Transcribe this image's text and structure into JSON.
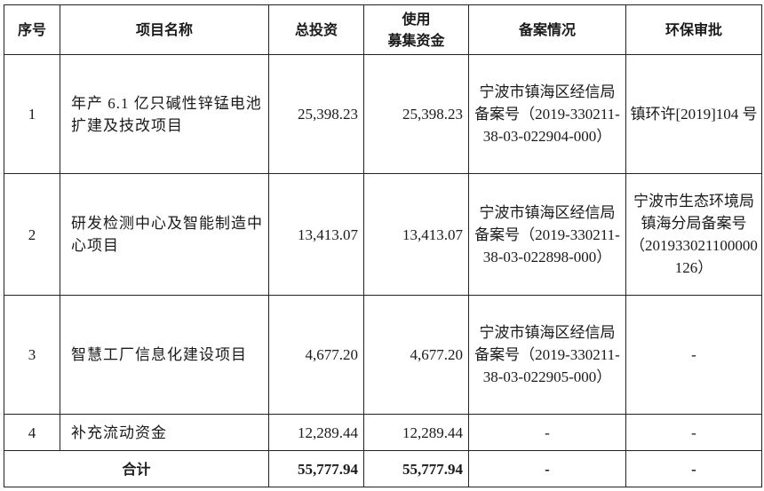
{
  "headers": [
    "序号",
    "项目名称",
    "总投资",
    "使用募集资金",
    "备案情况",
    "环保审批"
  ],
  "header_lines": {
    "col4": [
      "使用",
      "募集资金"
    ]
  },
  "rows": [
    {
      "no": "1",
      "name": "年产 6.1 亿只碱性锌锰电池扩建及技改项目",
      "total": "25,398.23",
      "raised": "25,398.23",
      "filing": "宁波市镇海区经信局备案号（2019-330211-38-03-022904-000）",
      "env": "镇环许[2019]104 号"
    },
    {
      "no": "2",
      "name": "研发检测中心及智能制造中心项目",
      "total": "13,413.07",
      "raised": "13,413.07",
      "filing": "宁波市镇海区经信局备案号（2019-330211-38-03-022898-000）",
      "env": "宁波市生态环境局镇海分局备案号（201933021100000126）"
    },
    {
      "no": "3",
      "name": "智慧工厂信息化建设项目",
      "total": "4,677.20",
      "raised": "4,677.20",
      "filing": "宁波市镇海区经信局备案号（2019-330211-38-03-022905-000）",
      "env": "-"
    },
    {
      "no": "4",
      "name": "补充流动资金",
      "total": "12,289.44",
      "raised": "12,289.44",
      "filing": "-",
      "env": "-"
    }
  ],
  "total_row": {
    "label": "合计",
    "total": "55,777.94",
    "raised": "55,777.94",
    "filing": "-",
    "env": "-"
  }
}
